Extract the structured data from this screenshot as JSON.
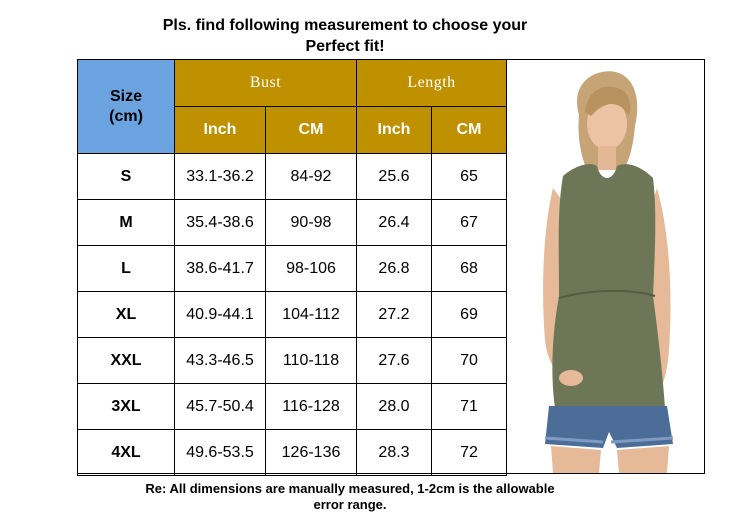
{
  "title": {
    "line1": "Pls. find following measurement to choose your",
    "line2": "Perfect fit!"
  },
  "table": {
    "size_header": {
      "line1": "Size",
      "line2": "(cm)"
    },
    "groups": [
      "Bust",
      "Length"
    ],
    "units": [
      "Inch",
      "CM",
      "Inch",
      "CM"
    ],
    "rows": [
      [
        "S",
        "33.1-36.2",
        "84-92",
        "25.6",
        "65"
      ],
      [
        "M",
        "35.4-38.6",
        "90-98",
        "26.4",
        "67"
      ],
      [
        "L",
        "38.6-41.7",
        "98-106",
        "26.8",
        "68"
      ],
      [
        "XL",
        "40.9-44.1",
        "104-112",
        "27.2",
        "69"
      ],
      [
        "XXL",
        "43.3-46.5",
        "110-118",
        "27.6",
        "70"
      ],
      [
        "3XL",
        "45.7-50.4",
        "116-128",
        "28.0",
        "71"
      ],
      [
        "4XL",
        "49.6-53.5",
        "126-136",
        "28.3",
        "72"
      ]
    ]
  },
  "note": {
    "line1": "Re: All dimensions are manually measured, 1-2cm is the allowable",
    "line2": "error range."
  },
  "colors": {
    "size_header_bg": "#6aa3e0",
    "gold_header_bg": "#bf9000",
    "shirt": "#6e7658",
    "shorts": "#4d6d99"
  }
}
